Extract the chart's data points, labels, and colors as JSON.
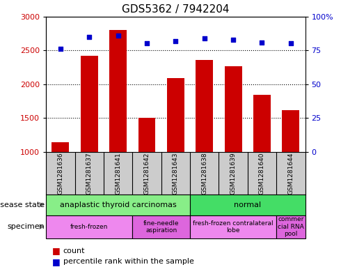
{
  "title": "GDS5362 / 7942204",
  "samples": [
    "GSM1281636",
    "GSM1281637",
    "GSM1281641",
    "GSM1281642",
    "GSM1281643",
    "GSM1281638",
    "GSM1281639",
    "GSM1281640",
    "GSM1281644"
  ],
  "counts": [
    1140,
    2420,
    2800,
    1510,
    2090,
    2360,
    2270,
    1840,
    1620
  ],
  "percentiles": [
    76,
    85,
    86,
    80,
    82,
    84,
    83,
    81,
    80
  ],
  "ylim_left": [
    1000,
    3000
  ],
  "ylim_right": [
    0,
    100
  ],
  "yticks_left": [
    1000,
    1500,
    2000,
    2500,
    3000
  ],
  "yticks_right": [
    0,
    25,
    50,
    75,
    100
  ],
  "bar_color": "#cc0000",
  "dot_color": "#0000cc",
  "disease_state_groups": [
    {
      "label": "anaplastic thyroid carcinomas",
      "start": 0,
      "end": 5,
      "color": "#88ee88"
    },
    {
      "label": "normal",
      "start": 5,
      "end": 9,
      "color": "#44dd66"
    }
  ],
  "specimen_groups": [
    {
      "label": "fresh-frozen",
      "start": 0,
      "end": 3,
      "color": "#ee88ee"
    },
    {
      "label": "fine-needle\naspiration",
      "start": 3,
      "end": 5,
      "color": "#dd66dd"
    },
    {
      "label": "fresh-frozen contralateral\nlobe",
      "start": 5,
      "end": 8,
      "color": "#ee88ee"
    },
    {
      "label": "commer\ncial RNA\npool",
      "start": 8,
      "end": 9,
      "color": "#dd66dd"
    }
  ],
  "left_label_color": "#cc0000",
  "right_label_color": "#0000cc",
  "bg_color": "#ffffff",
  "plot_bg_color": "#ffffff",
  "label_row_bg": "#cccccc"
}
